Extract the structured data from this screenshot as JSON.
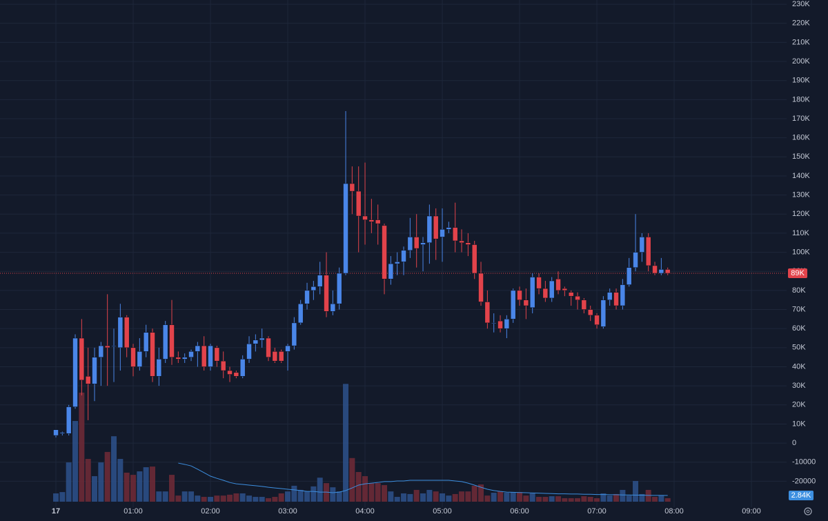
{
  "chart_data": {
    "type": "candlestick",
    "x": [
      0,
      5,
      10,
      15,
      20,
      25,
      30,
      35,
      40,
      45,
      50,
      55,
      60,
      65,
      70,
      75,
      80,
      85,
      90,
      95,
      100,
      105,
      110,
      115,
      120,
      125,
      130,
      135,
      140,
      145,
      150,
      155,
      160,
      165,
      170,
      175,
      180,
      185,
      190,
      195,
      200,
      205,
      210,
      215,
      220,
      225,
      230,
      235,
      240,
      245,
      250,
      255,
      260,
      265,
      270,
      275,
      280,
      285,
      290,
      295,
      300,
      305,
      310,
      315,
      320,
      325,
      330,
      335,
      340,
      345,
      350,
      355,
      360,
      365,
      370,
      375,
      380,
      385,
      390,
      395,
      400,
      405,
      410,
      415,
      420,
      425,
      430,
      435,
      440,
      445,
      450,
      455,
      460,
      465,
      470,
      475
    ],
    "open": [
      4000,
      5000,
      5000,
      19000,
      55000,
      35000,
      31000,
      45000,
      51000,
      51000,
      50000,
      66000,
      50000,
      40000,
      48000,
      58000,
      35000,
      44000,
      62000,
      45000,
      44000,
      45000,
      48000,
      51000,
      40000,
      50000,
      43000,
      38000,
      37000,
      35000,
      44000,
      52000,
      54000,
      55000,
      48000,
      48000,
      48000,
      51000,
      63000,
      73000,
      80000,
      82000,
      88000,
      69000,
      73000,
      89000,
      136000,
      132000,
      119000,
      117000,
      117000,
      114000,
      86000,
      94000,
      95000,
      101000,
      108000,
      104000,
      105000,
      119000,
      108000,
      112000,
      113000,
      106000,
      105000,
      104000,
      89000,
      74000,
      63000,
      64000,
      60000,
      65000,
      80000,
      75000,
      71000,
      87000,
      81000,
      76000,
      86000,
      81000,
      79000,
      77000,
      75000,
      70000,
      67000,
      61000,
      75000,
      79000,
      72000,
      83000,
      92000,
      100000,
      108000,
      93000,
      89000,
      91000
    ],
    "high": [
      7000,
      6000,
      20000,
      57000,
      65000,
      50000,
      50000,
      53000,
      78000,
      60000,
      73000,
      67000,
      52000,
      55000,
      62000,
      60000,
      50000,
      64000,
      75000,
      48000,
      47000,
      49000,
      53000,
      56000,
      52000,
      51000,
      48000,
      40000,
      38000,
      46000,
      56000,
      57000,
      60000,
      56000,
      50000,
      49000,
      52000,
      66000,
      75000,
      84000,
      85000,
      95000,
      100000,
      80000,
      92000,
      174000,
      145000,
      145000,
      147000,
      128000,
      125000,
      115000,
      98000,
      100000,
      103000,
      118000,
      120000,
      108000,
      125000,
      123000,
      123000,
      116000,
      126000,
      112000,
      110000,
      106000,
      95000,
      80000,
      68000,
      67000,
      67000,
      81000,
      82000,
      81000,
      89000,
      89000,
      85000,
      87000,
      90000,
      82000,
      80000,
      79000,
      76000,
      72000,
      68000,
      77000,
      81000,
      81000,
      86000,
      97000,
      120000,
      110000,
      110000,
      95000,
      97000,
      92000
    ],
    "low": [
      3000,
      4000,
      4000,
      18000,
      25000,
      12000,
      22000,
      30000,
      30000,
      32000,
      38000,
      45000,
      35000,
      38000,
      45000,
      32000,
      30000,
      42000,
      41000,
      42000,
      42000,
      43000,
      40000,
      38000,
      38000,
      40000,
      34000,
      32000,
      34000,
      34000,
      42000,
      48000,
      50000,
      43000,
      42000,
      42000,
      38000,
      49000,
      62000,
      70000,
      75000,
      78000,
      66000,
      67000,
      70000,
      88000,
      120000,
      100000,
      104000,
      110000,
      104000,
      78000,
      83000,
      88000,
      88000,
      97000,
      92000,
      90000,
      94000,
      96000,
      95000,
      110000,
      100000,
      100000,
      98000,
      86000,
      72000,
      60000,
      58000,
      58000,
      55000,
      63000,
      72000,
      65000,
      68000,
      78000,
      74000,
      74000,
      78000,
      77000,
      72000,
      70000,
      68000,
      64000,
      60000,
      60000,
      72000,
      70000,
      70000,
      82000,
      90000,
      95000,
      90000,
      88000,
      88000,
      88000
    ],
    "close": [
      7000,
      5500,
      19000,
      55000,
      33000,
      31000,
      45000,
      51000,
      50000,
      51000,
      66000,
      50000,
      40000,
      48000,
      58000,
      35000,
      44000,
      62000,
      45000,
      44000,
      45000,
      48000,
      51000,
      40000,
      51000,
      43000,
      38000,
      36000,
      35000,
      44000,
      52000,
      54000,
      55000,
      45000,
      43000,
      43000,
      51000,
      63000,
      73000,
      80000,
      82000,
      88000,
      69000,
      73000,
      89000,
      136000,
      132000,
      119000,
      117000,
      116000,
      115000,
      86000,
      94000,
      95000,
      101000,
      108000,
      102000,
      105000,
      119000,
      107000,
      112000,
      113000,
      106000,
      105000,
      104000,
      89000,
      74000,
      63000,
      63000,
      60000,
      65000,
      80000,
      75000,
      72000,
      87000,
      81000,
      76000,
      85000,
      80000,
      80000,
      77000,
      75000,
      70000,
      67000,
      62000,
      75000,
      79000,
      72000,
      83000,
      92000,
      100000,
      108000,
      93000,
      89000,
      91000,
      89000
    ],
    "volume": [
      3800,
      4400,
      18000,
      37000,
      50000,
      19600,
      11700,
      18000,
      22800,
      30000,
      19600,
      13300,
      12300,
      13900,
      15800,
      16100,
      4700,
      4700,
      12300,
      2800,
      4700,
      4700,
      2800,
      2200,
      2200,
      2800,
      2800,
      3200,
      3800,
      3800,
      2800,
      2200,
      2200,
      1600,
      2200,
      3800,
      4700,
      7300,
      5400,
      4700,
      7000,
      11000,
      8500,
      6600,
      4700,
      54000,
      20000,
      13600,
      11700,
      8500,
      8500,
      7600,
      4700,
      2200,
      3800,
      3500,
      5400,
      3800,
      5400,
      4700,
      3800,
      2800,
      3500,
      4700,
      4700,
      7300,
      7900,
      2800,
      4100,
      4700,
      4100,
      4400,
      4400,
      2800,
      3800,
      2200,
      2200,
      2500,
      2500,
      1600,
      1600,
      1600,
      2500,
      2200,
      1600,
      3800,
      2800,
      3500,
      5400,
      2800,
      9500,
      3500,
      5400,
      2200,
      2800,
      1600
    ],
    "volume_ma": [
      null,
      null,
      null,
      null,
      null,
      null,
      null,
      null,
      null,
      null,
      null,
      null,
      null,
      null,
      null,
      null,
      null,
      null,
      null,
      17700,
      17100,
      16400,
      14900,
      13300,
      11700,
      10700,
      9800,
      8800,
      8200,
      7900,
      7600,
      7300,
      7000,
      6600,
      6300,
      6000,
      5700,
      5400,
      5100,
      4700,
      4700,
      4400,
      4400,
      4100,
      4400,
      5100,
      6300,
      7600,
      8200,
      8500,
      8800,
      9200,
      9200,
      9500,
      9500,
      9800,
      9800,
      9800,
      9800,
      9800,
      9800,
      9800,
      9500,
      9200,
      8500,
      7600,
      6600,
      5700,
      5100,
      4700,
      4400,
      4300,
      4200,
      4100,
      4000,
      3900,
      3800,
      3700,
      3600,
      3600,
      3500,
      3500,
      3400,
      3400,
      3300,
      3300,
      3200,
      3200,
      3100,
      3100,
      3000,
      3000,
      2900,
      2900,
      2900,
      2840
    ],
    "volume_ma_label": "2.84K",
    "last_price_label": "89K",
    "xlim": [
      -43.4,
      567.3
    ],
    "xticks": [
      {
        "value": 0,
        "label": "17"
      },
      {
        "value": 60,
        "label": "01:00"
      },
      {
        "value": 120,
        "label": "02:00"
      },
      {
        "value": 180,
        "label": "03:00"
      },
      {
        "value": 240,
        "label": "04:00"
      },
      {
        "value": 300,
        "label": "05:00"
      },
      {
        "value": 360,
        "label": "06:00"
      },
      {
        "value": 420,
        "label": "07:00"
      },
      {
        "value": 480,
        "label": "08:00"
      },
      {
        "value": 540,
        "label": "09:00"
      }
    ],
    "ylim": [
      -30700,
      232200
    ],
    "yticks": [
      {
        "value": 230000,
        "label": "230K"
      },
      {
        "value": 220000,
        "label": "220K"
      },
      {
        "value": 210000,
        "label": "210K"
      },
      {
        "value": 200000,
        "label": "200K"
      },
      {
        "value": 190000,
        "label": "190K"
      },
      {
        "value": 180000,
        "label": "180K"
      },
      {
        "value": 170000,
        "label": "170K"
      },
      {
        "value": 160000,
        "label": "160K"
      },
      {
        "value": 150000,
        "label": "150K"
      },
      {
        "value": 140000,
        "label": "140K"
      },
      {
        "value": 130000,
        "label": "130K"
      },
      {
        "value": 120000,
        "label": "120K"
      },
      {
        "value": 110000,
        "label": "110K"
      },
      {
        "value": 100000,
        "label": "100K"
      },
      {
        "value": 90000,
        "label": "90K"
      },
      {
        "value": 80000,
        "label": "80K"
      },
      {
        "value": 70000,
        "label": "70K"
      },
      {
        "value": 60000,
        "label": "60K"
      },
      {
        "value": 50000,
        "label": "50K"
      },
      {
        "value": 40000,
        "label": "40K"
      },
      {
        "value": 30000,
        "label": "30K"
      },
      {
        "value": 20000,
        "label": "20K"
      },
      {
        "value": 10000,
        "label": "10K"
      },
      0,
      -10000,
      -20000
    ],
    "y2lim": [
      0,
      230000
    ],
    "grid": true,
    "up_color": "#4a86e8",
    "down_color": "#e2434b",
    "volume_up_color": "#2c4f86",
    "volume_down_color": "#6d2a36",
    "volume_ma_color": "#3d8fe0"
  }
}
